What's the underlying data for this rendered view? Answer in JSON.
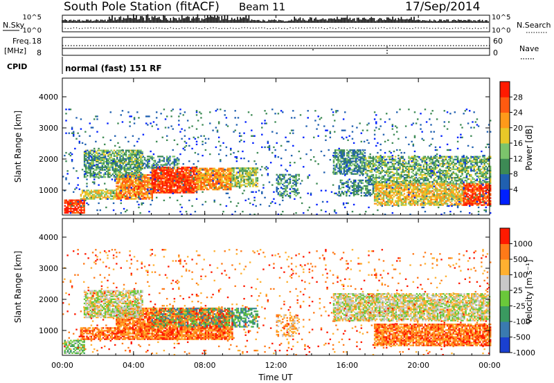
{
  "header": {
    "title": "South Pole Station (fitACF)",
    "beam": "Beam 11",
    "date": "17/Sep/2014"
  },
  "top_panels": {
    "nsky_label": "N.Sky",
    "nsearch_label": "N.Search",
    "noise_ticks_left": [
      "10^5",
      "10^0"
    ],
    "noise_ticks_right": [
      "10^5",
      "10^0"
    ],
    "freq_label_line1": "Freq.",
    "freq_label_line2": "[MHz]",
    "freq_ticks": [
      "18",
      "8"
    ],
    "nave_label": "Nave",
    "nave_ticks": [
      "60",
      "0"
    ],
    "cpid_label": "CPID",
    "cpid_text": "normal (fast) 151 RF"
  },
  "chart_data": [
    {
      "type": "heatmap",
      "name": "power",
      "ylabel": "Slant Range [km]",
      "xlabel": "Time UT",
      "x_ticks": [
        "00:00",
        "04:00",
        "08:00",
        "12:00",
        "16:00",
        "20:00",
        "00:00"
      ],
      "y_ticks": [
        1000,
        2000,
        3000,
        4000
      ],
      "ylim": [
        200,
        4600
      ],
      "xlim_hours": [
        0,
        24
      ],
      "colorbar": {
        "label": "Power [dB]",
        "ticks": [
          "4",
          "8",
          "12",
          "16",
          "20",
          "24",
          "28"
        ],
        "range": [
          0,
          30
        ],
        "colors": [
          "#0020ff",
          "#2060b0",
          "#3d8a55",
          "#7cc46c",
          "#e8c828",
          "#ff9a1a",
          "#ff5a10",
          "#ff1a00"
        ]
      },
      "regions": [
        {
          "t0": 0.1,
          "t1": 1.2,
          "r0": 250,
          "r1": 700,
          "val": 27,
          "sparse": 0.8
        },
        {
          "t0": 1.0,
          "t1": 3.0,
          "r0": 700,
          "r1": 1000,
          "val": 16,
          "sparse": 0.7
        },
        {
          "t0": 3.0,
          "t1": 5.0,
          "r0": 700,
          "r1": 1500,
          "val": 22,
          "sparse": 0.85
        },
        {
          "t0": 5.0,
          "t1": 7.5,
          "r0": 900,
          "r1": 1750,
          "val": 26,
          "sparse": 0.9
        },
        {
          "t0": 7.5,
          "t1": 9.5,
          "r0": 1000,
          "r1": 1700,
          "val": 21,
          "sparse": 0.85
        },
        {
          "t0": 9.5,
          "t1": 11.0,
          "r0": 1100,
          "r1": 1700,
          "val": 14,
          "sparse": 0.7
        },
        {
          "t0": 1.2,
          "t1": 4.5,
          "r0": 1400,
          "r1": 2300,
          "val": 11,
          "sparse": 0.7
        },
        {
          "t0": 4.5,
          "t1": 6.5,
          "r0": 1700,
          "r1": 2100,
          "val": 9,
          "sparse": 0.5
        },
        {
          "t0": 12.0,
          "t1": 13.3,
          "r0": 800,
          "r1": 1500,
          "val": 10,
          "sparse": 0.4
        },
        {
          "t0": 15.2,
          "t1": 17.0,
          "r0": 1500,
          "r1": 2300,
          "val": 9,
          "sparse": 0.65
        },
        {
          "t0": 17.0,
          "t1": 24.0,
          "r0": 1200,
          "r1": 2100,
          "val": 12,
          "sparse": 0.6
        },
        {
          "t0": 15.5,
          "t1": 17.5,
          "r0": 800,
          "r1": 1300,
          "val": 9,
          "sparse": 0.45
        },
        {
          "t0": 17.5,
          "t1": 22.5,
          "r0": 500,
          "r1": 1200,
          "val": 18,
          "sparse": 0.75
        },
        {
          "t0": 22.5,
          "t1": 24.0,
          "r0": 500,
          "r1": 1200,
          "val": 26,
          "sparse": 0.85
        },
        {
          "t0": 0.0,
          "t1": 24.0,
          "r0": 200,
          "r1": 3600,
          "val": 6,
          "sparse": 0.04
        }
      ]
    },
    {
      "type": "heatmap",
      "name": "velocity",
      "ylabel": "Slant Range [km]",
      "xlabel": "Time UT",
      "x_ticks": [
        "00:00",
        "04:00",
        "08:00",
        "12:00",
        "16:00",
        "20:00",
        "00:00"
      ],
      "y_ticks": [
        1000,
        2000,
        3000,
        4000
      ],
      "ylim": [
        200,
        4600
      ],
      "xlim_hours": [
        0,
        24
      ],
      "colorbar": {
        "label": "Velocity [m s⁻¹]",
        "ticks": [
          "1000",
          "500",
          "100",
          "25",
          "-25",
          "-100",
          "-500",
          "-1000"
        ],
        "colors": [
          "#1a40d0",
          "#3a7ab0",
          "#3a9a60",
          "#6ac83a",
          "#c8c8c8",
          "#ffb030",
          "#ff7a18",
          "#ff1a00"
        ]
      },
      "regions": [
        {
          "t0": 0.1,
          "t1": 1.2,
          "r0": 250,
          "r1": 700,
          "val": 3,
          "sparse": 0.6
        },
        {
          "t0": 1.0,
          "t1": 3.0,
          "r0": 700,
          "r1": 1100,
          "val": 6,
          "sparse": 0.7
        },
        {
          "t0": 3.0,
          "t1": 9.5,
          "r0": 700,
          "r1": 1700,
          "val": 6,
          "sparse": 0.85
        },
        {
          "t0": 5.0,
          "t1": 9.5,
          "r0": 1100,
          "r1": 1700,
          "val": 2,
          "sparse": 0.35
        },
        {
          "t0": 9.5,
          "t1": 11.0,
          "r0": 1100,
          "r1": 1700,
          "val": 2,
          "sparse": 0.6
        },
        {
          "t0": 1.2,
          "t1": 4.5,
          "r0": 1400,
          "r1": 2300,
          "val": 4,
          "sparse": 0.75
        },
        {
          "t0": 15.2,
          "t1": 24.0,
          "r0": 1300,
          "r1": 2200,
          "val": 4,
          "sparse": 0.75
        },
        {
          "t0": 17.5,
          "t1": 24.0,
          "r0": 500,
          "r1": 1200,
          "val": 6,
          "sparse": 0.8
        },
        {
          "t0": 12.0,
          "t1": 13.3,
          "r0": 800,
          "r1": 1500,
          "val": 5,
          "sparse": 0.35
        },
        {
          "t0": 0.0,
          "t1": 24.0,
          "r0": 200,
          "r1": 3600,
          "val": 6,
          "sparse": 0.04
        }
      ]
    }
  ]
}
